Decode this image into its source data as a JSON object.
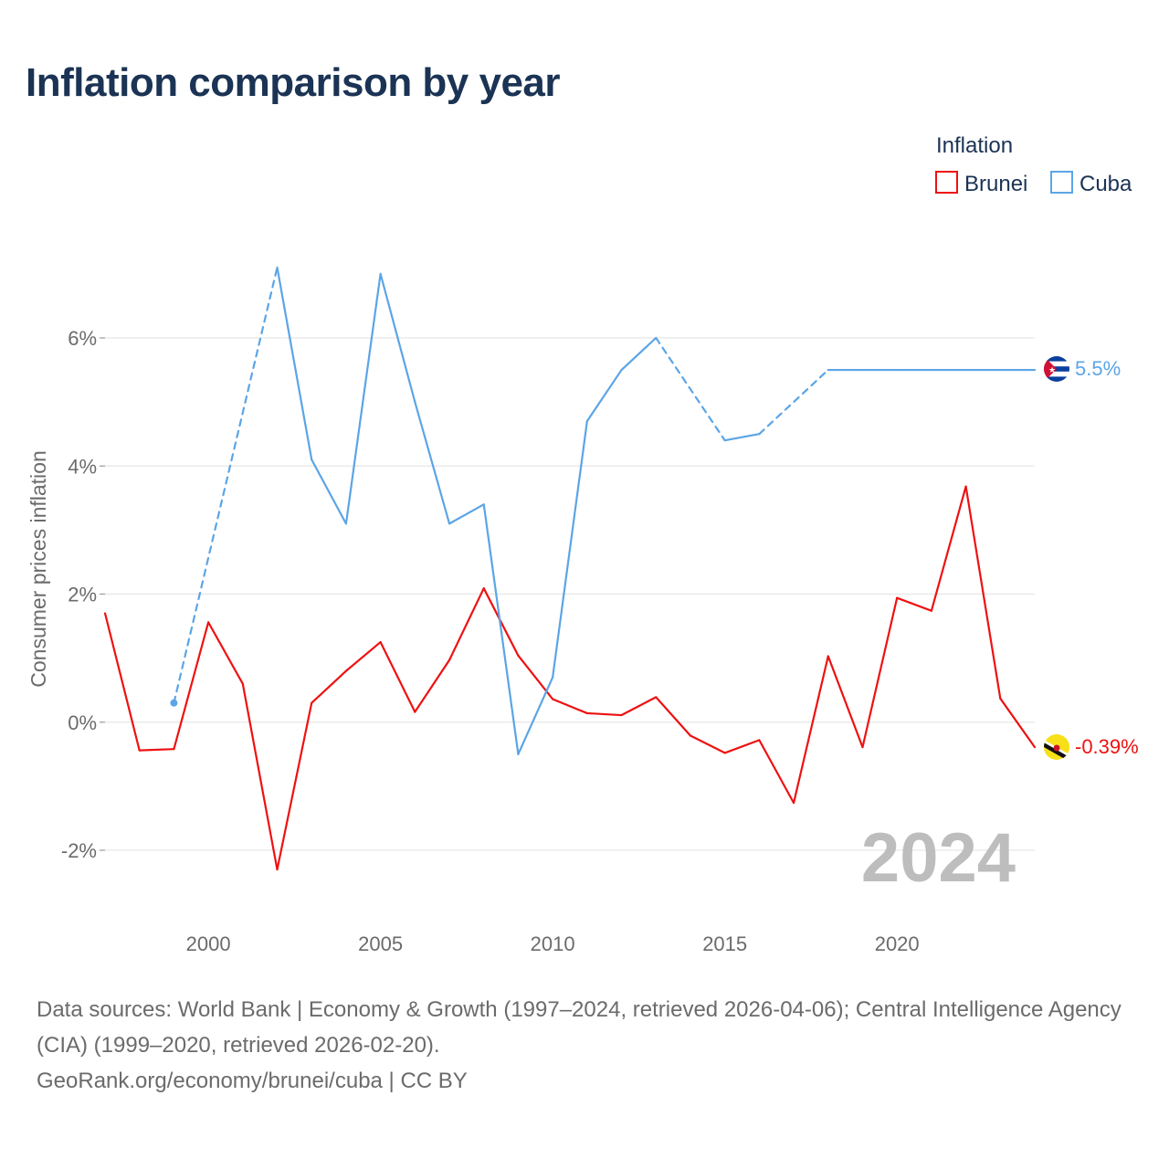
{
  "title": "Inflation comparison by year",
  "legend": {
    "title": "Inflation",
    "items": [
      {
        "label": "Brunei",
        "color": "#ee1111"
      },
      {
        "label": "Cuba",
        "color": "#5ba5e6"
      }
    ]
  },
  "year_watermark": "2024",
  "source_line": "Data sources: World Bank | Economy & Growth (1997–2024, retrieved 2026-04-06); Central Intelligence Agency (CIA) (1999–2020, retrieved 2026-02-20).",
  "credit_line": "GeoRank.org/economy/brunei/cuba | CC BY",
  "chart_data": {
    "type": "line",
    "title": "Inflation comparison by year",
    "xlabel": "",
    "ylabel": "Consumer prices inflation",
    "xlim": [
      1997,
      2024
    ],
    "ylim": [
      -3,
      7.5
    ],
    "x_ticks": [
      2000,
      2005,
      2010,
      2015,
      2020
    ],
    "y_ticks": [
      -2,
      0,
      2,
      4,
      6
    ],
    "y_tick_labels": [
      "-2%",
      "0%",
      "2%",
      "4%",
      "6%"
    ],
    "grid": true,
    "legend_position": "top-right",
    "series": [
      {
        "name": "Brunei",
        "color": "#ee1111",
        "end_label": "-0.39%",
        "points": [
          [
            1997,
            1.7
          ],
          [
            1998,
            -0.44
          ],
          [
            1999,
            -0.42
          ],
          [
            2000,
            1.56
          ],
          [
            2001,
            0.6
          ],
          [
            2002,
            -2.3
          ],
          [
            2003,
            0.3
          ],
          [
            2004,
            0.8
          ],
          [
            2005,
            1.25
          ],
          [
            2006,
            0.16
          ],
          [
            2007,
            0.97
          ],
          [
            2008,
            2.09
          ],
          [
            2009,
            1.04
          ],
          [
            2010,
            0.36
          ],
          [
            2011,
            0.14
          ],
          [
            2012,
            0.11
          ],
          [
            2013,
            0.39
          ],
          [
            2014,
            -0.21
          ],
          [
            2015,
            -0.48
          ],
          [
            2016,
            -0.28
          ],
          [
            2017,
            -1.26
          ],
          [
            2018,
            1.03
          ],
          [
            2019,
            -0.39
          ],
          [
            2020,
            1.94
          ],
          [
            2021,
            1.74
          ],
          [
            2022,
            3.68
          ],
          [
            2023,
            0.37
          ],
          [
            2024,
            -0.39
          ]
        ]
      },
      {
        "name": "Cuba",
        "color": "#5ba5e6",
        "end_label": "5.5%",
        "points": [
          [
            1999,
            0.3
          ],
          [
            2002,
            7.1
          ],
          [
            2003,
            4.1
          ],
          [
            2004,
            3.1
          ],
          [
            2005,
            7.0
          ],
          [
            2006,
            5.0
          ],
          [
            2007,
            3.1
          ],
          [
            2008,
            3.4
          ],
          [
            2009,
            -0.5
          ],
          [
            2010,
            0.7
          ],
          [
            2011,
            4.7
          ],
          [
            2012,
            5.5
          ],
          [
            2013,
            6.0
          ],
          [
            2015,
            4.4
          ],
          [
            2016,
            4.5
          ],
          [
            2018,
            5.5
          ],
          [
            2019,
            5.5
          ],
          [
            2020,
            5.5
          ],
          [
            2024,
            5.5
          ]
        ],
        "dashed_segments": [
          [
            1999,
            2002
          ],
          [
            2013,
            2015
          ],
          [
            2016,
            2018
          ]
        ]
      }
    ]
  }
}
